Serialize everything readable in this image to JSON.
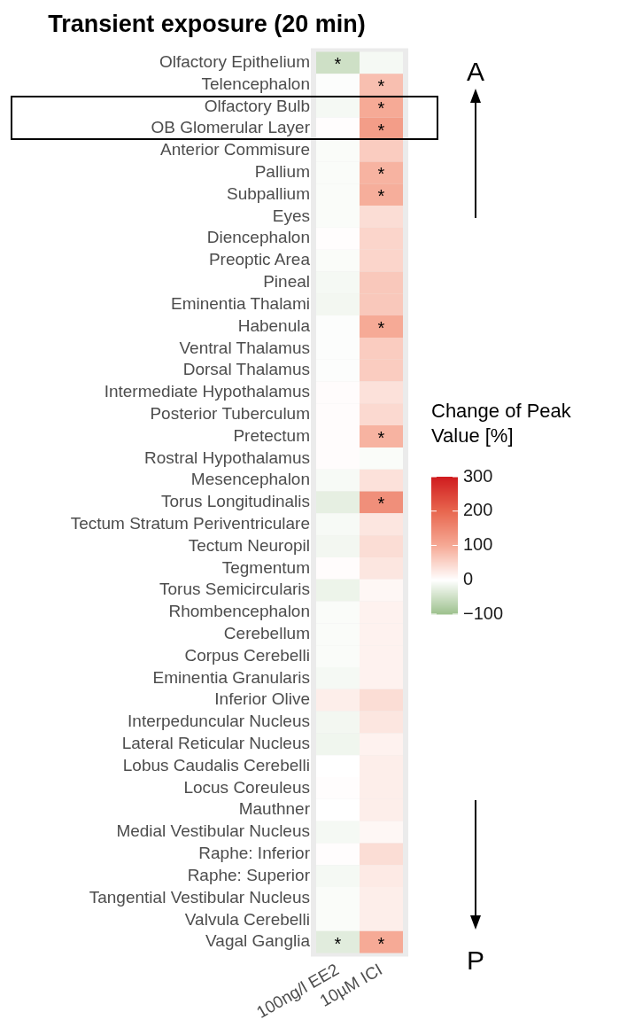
{
  "chart_data": {
    "type": "heatmap",
    "title": "Transient exposure (20 min)",
    "categories": [
      "100ng/l EE2",
      "10µM ICI"
    ],
    "y_categories": [
      "Olfactory Epithelium",
      "Telencephalon",
      "Olfactory Bulb",
      "OB Glomerular Layer",
      "Anterior Commisure",
      "Pallium",
      "Subpallium",
      "Eyes",
      "Diencephalon",
      "Preoptic Area",
      "Pineal",
      "Eminentia Thalami",
      "Habenula",
      "Ventral Thalamus",
      "Dorsal Thalamus",
      "Intermediate Hypothalamus",
      "Posterior Tuberculum",
      "Pretectum",
      "Rostral Hypothalamus",
      "Mesencephalon",
      "Torus Longitudinalis",
      "Tectum Stratum Periventriculare",
      "Tectum Neuropil",
      "Tegmentum",
      "Torus Semicircularis",
      "Rhombencephalon",
      "Cerebellum",
      "Corpus Cerebelli",
      "Eminentia Granularis",
      "Inferior Olive",
      "Interpeduncular Nucleus",
      "Lateral Reticular Nucleus",
      "Lobus Caudalis Cerebelli",
      "Locus Coreuleus",
      "Mauthner",
      "Medial Vestibular Nucleus",
      "Raphe: Inferior",
      "Raphe: Superior",
      "Tangential Vestibular Nucleus",
      "Valvula Cerebelli",
      "Vagal Ganglia"
    ],
    "cells": [
      [
        -50,
        -10
      ],
      [
        -3,
        75
      ],
      [
        -10,
        100
      ],
      [
        2,
        120
      ],
      [
        -5,
        60
      ],
      [
        -5,
        90
      ],
      [
        -5,
        95
      ],
      [
        -5,
        40
      ],
      [
        2,
        50
      ],
      [
        -5,
        50
      ],
      [
        -10,
        65
      ],
      [
        -12,
        65
      ],
      [
        -3,
        100
      ],
      [
        -3,
        60
      ],
      [
        -3,
        60
      ],
      [
        3,
        35
      ],
      [
        3,
        45
      ],
      [
        3,
        90
      ],
      [
        3,
        -5
      ],
      [
        -8,
        35
      ],
      [
        -25,
        140
      ],
      [
        -8,
        30
      ],
      [
        -12,
        40
      ],
      [
        3,
        30
      ],
      [
        -18,
        10
      ],
      [
        -5,
        15
      ],
      [
        -5,
        15
      ],
      [
        -5,
        15
      ],
      [
        -10,
        15
      ],
      [
        20,
        40
      ],
      [
        -12,
        30
      ],
      [
        -15,
        15
      ],
      [
        0,
        20
      ],
      [
        2,
        20
      ],
      [
        0,
        20
      ],
      [
        -10,
        10
      ],
      [
        2,
        40
      ],
      [
        -10,
        25
      ],
      [
        -5,
        20
      ],
      [
        -5,
        20
      ],
      [
        -30,
        100
      ]
    ],
    "cell_labels": [
      [
        "*",
        null
      ],
      [
        null,
        "*"
      ],
      [
        null,
        "*"
      ],
      [
        null,
        "*"
      ],
      [
        null,
        null
      ],
      [
        null,
        "*"
      ],
      [
        null,
        "*"
      ],
      [
        null,
        null
      ],
      [
        null,
        null
      ],
      [
        null,
        null
      ],
      [
        null,
        null
      ],
      [
        null,
        null
      ],
      [
        null,
        "*"
      ],
      [
        null,
        null
      ],
      [
        null,
        null
      ],
      [
        null,
        null
      ],
      [
        null,
        null
      ],
      [
        null,
        "*"
      ],
      [
        null,
        null
      ],
      [
        null,
        null
      ],
      [
        null,
        "*"
      ],
      [
        null,
        null
      ],
      [
        null,
        null
      ],
      [
        null,
        null
      ],
      [
        null,
        null
      ],
      [
        null,
        null
      ],
      [
        null,
        null
      ],
      [
        null,
        null
      ],
      [
        null,
        null
      ],
      [
        null,
        null
      ],
      [
        null,
        null
      ],
      [
        null,
        null
      ],
      [
        null,
        null
      ],
      [
        null,
        null
      ],
      [
        null,
        null
      ],
      [
        null,
        null
      ],
      [
        null,
        null
      ],
      [
        null,
        null
      ],
      [
        null,
        null
      ],
      [
        null,
        null
      ],
      [
        "*",
        "*"
      ]
    ],
    "clabel": "Change of Peak Value [%]",
    "clim": [
      -100,
      300
    ],
    "cticks": [
      {
        "value": -100,
        "label": "−100"
      },
      0,
      100,
      200,
      300
    ],
    "annotations": [
      "A",
      "P"
    ]
  }
}
